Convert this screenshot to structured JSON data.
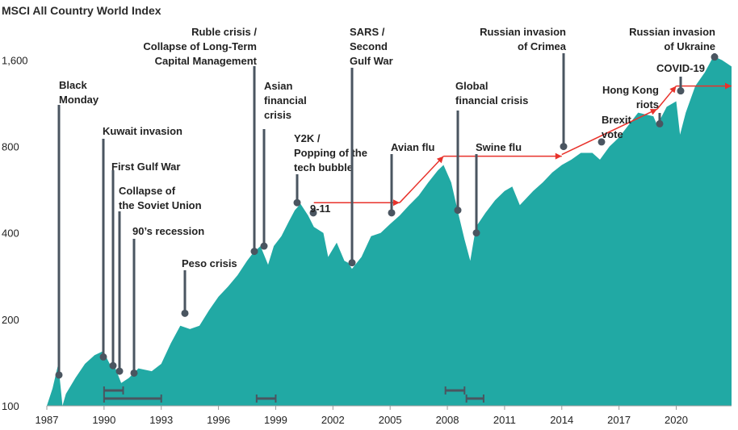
{
  "chart_data": {
    "type": "area",
    "title": "MSCI All Country World Index",
    "xlabel": "",
    "ylabel": "",
    "y_scale": "log",
    "ylim": [
      100,
      2000
    ],
    "y_ticks": [
      100,
      200,
      400,
      800,
      1600
    ],
    "y_tick_labels": [
      "100",
      "200",
      "400",
      "800",
      "1,600"
    ],
    "x_ticks": [
      1987,
      1990,
      1993,
      1996,
      1999,
      2002,
      2005,
      2008,
      2011,
      2014,
      2017,
      2020
    ],
    "x_tick_labels": [
      "1987",
      "1990",
      "1993",
      "1996",
      "1999",
      "2002",
      "2005",
      "2008",
      "2011",
      "2014",
      "2017",
      "2020"
    ],
    "xlim": [
      1987,
      2022.9
    ],
    "fill_color": "#21a9a4",
    "marker_color": "#4a5560",
    "arrow_color": "#e8322b",
    "series": [
      {
        "x": [
          1987.0,
          1987.3,
          1987.6,
          1987.82,
          1988.0,
          1988.5,
          1989.0,
          1989.5,
          1989.95,
          1990.3,
          1990.6,
          1990.9,
          1991.3,
          1991.8,
          1992.5,
          1993.0,
          1993.5,
          1994.0,
          1994.5,
          1995.0,
          1995.5,
          1996.0,
          1996.5,
          1997.0,
          1997.5,
          1997.8,
          1998.2,
          1998.6,
          1998.9,
          1999.3,
          1999.7,
          2000.0,
          2000.3,
          2000.7,
          2001.0,
          2001.5,
          2001.75,
          2002.2,
          2002.6,
          2002.8,
          2003.0,
          2003.5,
          2004.0,
          2004.5,
          2005.0,
          2005.5,
          2006.0,
          2006.5,
          2007.0,
          2007.5,
          2007.8,
          2008.2,
          2008.6,
          2008.9,
          2009.2,
          2009.5,
          2010.0,
          2010.5,
          2011.0,
          2011.4,
          2011.8,
          2012.5,
          2013.0,
          2013.5,
          2014.0,
          2014.5,
          2015.0,
          2015.6,
          2016.0,
          2016.5,
          2017.0,
          2017.5,
          2018.0,
          2018.8,
          2019.0,
          2019.5,
          2020.0,
          2020.2,
          2020.5,
          2021.0,
          2021.5,
          2021.95,
          2022.4,
          2022.9
        ],
        "y": [
          100,
          115,
          140,
          100,
          110,
          125,
          140,
          150,
          155,
          140,
          135,
          120,
          125,
          135,
          132,
          140,
          165,
          190,
          185,
          190,
          215,
          240,
          260,
          285,
          320,
          340,
          360,
          310,
          360,
          390,
          440,
          480,
          505,
          460,
          420,
          400,
          330,
          370,
          320,
          315,
          300,
          330,
          390,
          400,
          430,
          460,
          500,
          540,
          600,
          660,
          690,
          600,
          460,
          380,
          320,
          420,
          470,
          520,
          560,
          580,
          500,
          560,
          600,
          650,
          690,
          720,
          760,
          760,
          720,
          800,
          860,
          950,
          1050,
          1020,
          950,
          1100,
          1150,
          880,
          1050,
          1300,
          1450,
          1650,
          1600,
          1520
        ]
      }
    ],
    "events": [
      {
        "label": [
          "Black",
          "Monday"
        ],
        "x": 1987.82,
        "y": 128
      },
      {
        "label": [
          "Kuwait invasion"
        ],
        "x": 1990.0,
        "y": 148
      },
      {
        "label": [
          "First Gulf War"
        ],
        "x": 1990.5,
        "y": 138
      },
      {
        "label": [
          "Collapse of",
          "the Soviet Union"
        ],
        "x": 1990.9,
        "y": 132
      },
      {
        "label": [
          "90’s recession"
        ],
        "x": 1991.5,
        "y": 130
      },
      {
        "label": [
          "Peso crisis"
        ],
        "x": 1994.2,
        "y": 210
      },
      {
        "label": [
          "Ruble crisis /",
          "Collapse of Long-Term",
          "Capital Management"
        ],
        "x": 1997.8,
        "y": 345
      },
      {
        "label": [
          "Asian",
          "financial",
          "crisis"
        ],
        "x": 1998.3,
        "y": 360
      },
      {
        "label": [
          "Y2K /",
          "Popping of the",
          "tech bubble"
        ],
        "x": 2000.3,
        "y": 510
      },
      {
        "label": [
          "9-11"
        ],
        "x": 2001.0,
        "y": 470
      },
      {
        "label": [
          "SARS /",
          "Second",
          "Gulf War"
        ],
        "x": 2003.0,
        "y": 315
      },
      {
        "label": [
          "Avian flu"
        ],
        "x": 2005.0,
        "y": 470
      },
      {
        "label": [
          "Global",
          "financial crisis"
        ],
        "x": 2008.3,
        "y": 480
      },
      {
        "label": [
          "Swine flu"
        ],
        "x": 2009.3,
        "y": 400
      },
      {
        "label": [
          "Russian invasion",
          "of Crimea"
        ],
        "x": 2014.0,
        "y": 800
      },
      {
        "label": [
          "Brexit",
          "vote"
        ],
        "x": 2016.0,
        "y": 830
      },
      {
        "label": [
          "Hong Kong",
          "riots"
        ],
        "x": 2019.0,
        "y": 960
      },
      {
        "label": [
          "COVID-19"
        ],
        "x": 2020.0,
        "y": 1250
      },
      {
        "label": [
          "Russian invasion",
          "of Ukraine"
        ],
        "x": 2022.0,
        "y": 1640
      }
    ],
    "recession_bars": [
      {
        "start": 1990.0,
        "end": 1991.0
      },
      {
        "start": 1990.0,
        "end": 1993.0
      },
      {
        "start": 1998.0,
        "end": 1999.0
      },
      {
        "start": 2007.9,
        "end": 2008.9
      },
      {
        "start": 2009.0,
        "end": 2009.9
      }
    ],
    "recovery_arrows": [
      {
        "from": [
          2001.0,
          510
        ],
        "to": [
          2005.5,
          510
        ]
      },
      {
        "from": [
          2005.5,
          510
        ],
        "to": [
          2007.8,
          740
        ]
      },
      {
        "from": [
          2007.8,
          740
        ],
        "to": [
          2014.0,
          740
        ]
      },
      {
        "from": [
          2014.0,
          750
        ],
        "to": [
          2019.0,
          1080
        ]
      },
      {
        "from": [
          2019.0,
          1080
        ],
        "to": [
          2020.0,
          1300
        ]
      },
      {
        "from": [
          2020.0,
          1300
        ],
        "to": [
          2022.9,
          1300
        ]
      }
    ]
  }
}
